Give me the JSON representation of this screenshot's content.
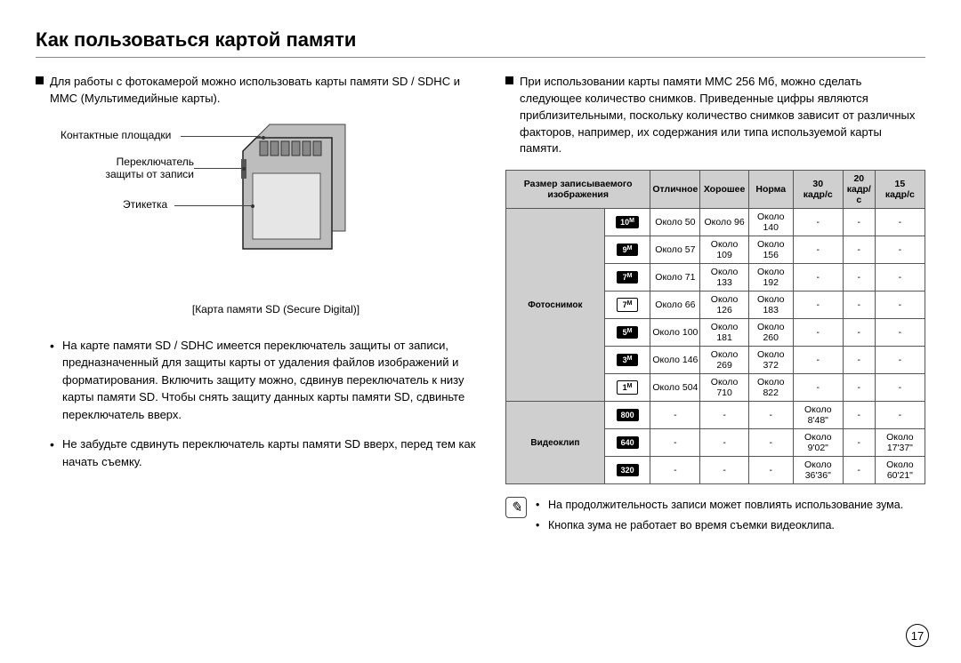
{
  "title": "Как пользоваться картой памяти",
  "left": {
    "intro": "Для работы с фотокамерой можно использовать карты памяти SD / SDHC и MMC (Мультимедийные карты).",
    "labels": {
      "contacts": "Контактные площадки",
      "switch": "Переключатель защиты от записи",
      "label": "Этикетка"
    },
    "caption": "[Карта памяти SD (Secure Digital)]",
    "bullets": [
      "На карте памяти SD / SDHC имеется переключатель защиты от записи, предназначенный для защиты карты от удаления файлов изображений и форматирования. Включить защиту можно, сдвинув переключатель к низу карты памяти SD. Чтобы снять защиту данных карты памяти SD, сдвиньте переключатель вверх.",
      "Не забудьте сдвинуть переключатель карты памяти SD вверх, перед тем как начать съемку."
    ]
  },
  "right": {
    "intro": "При использовании карты памяти MMC 256 Мб, можно сделать следующее количество снимков. Приведенные цифры являются приблизительными, поскольку количество снимков зависит от различных факторов, например, их содержания или типа используемой карты памяти.",
    "table": {
      "header": {
        "imgsize": "Размер записываемого изображения",
        "c1": "Отличное",
        "c2": "Хорошее",
        "c3": "Норма",
        "c4a": "30",
        "c4b": "кадр/с",
        "c5a": "20",
        "c5b": "кадр/с",
        "c6a": "15",
        "c6b": "кадр/с"
      },
      "photo_label": "Фотоснимок",
      "video_label": "Видеоклип",
      "photo_sizes": [
        "10",
        "9",
        "7",
        "7",
        "5",
        "3",
        "1"
      ],
      "photo_rows": [
        [
          "Около 50",
          "Около 96",
          "Около 140",
          "-",
          "-",
          "-"
        ],
        [
          "Около 57",
          "Около 109",
          "Около 156",
          "-",
          "-",
          "-"
        ],
        [
          "Около 71",
          "Около 133",
          "Около 192",
          "-",
          "-",
          "-"
        ],
        [
          "Около 66",
          "Около 126",
          "Около 183",
          "-",
          "-",
          "-"
        ],
        [
          "Около 100",
          "Около 181",
          "Около 260",
          "-",
          "-",
          "-"
        ],
        [
          "Около 146",
          "Около 269",
          "Около 372",
          "-",
          "-",
          "-"
        ],
        [
          "Около 504",
          "Около 710",
          "Около 822",
          "-",
          "-",
          "-"
        ]
      ],
      "video_sizes": [
        "800",
        "640",
        "320"
      ],
      "video_rows": [
        [
          "-",
          "-",
          "-",
          "Около 8'48\"",
          "-",
          "-"
        ],
        [
          "-",
          "-",
          "-",
          "Около 9'02\"",
          "-",
          "Около 17'37\""
        ],
        [
          "-",
          "-",
          "-",
          "Около 36'36\"",
          "-",
          "Около 60'21\""
        ]
      ]
    },
    "notes": [
      "На продолжительность записи может повлиять использование зума.",
      "Кнопка зума не работает во время съемки видеоклипа."
    ]
  },
  "pagenum": "17"
}
